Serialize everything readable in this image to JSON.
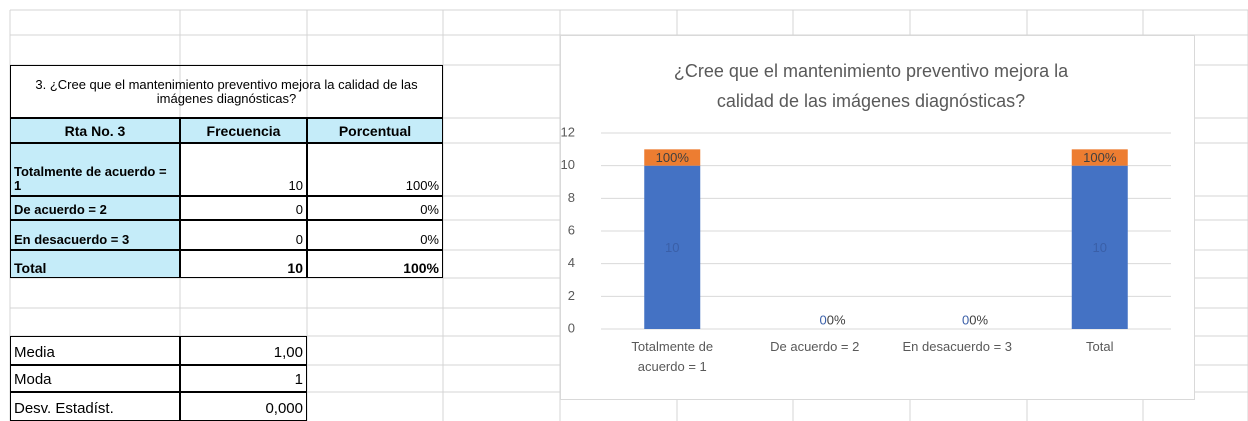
{
  "table": {
    "title": "3. ¿Cree que el mantenimiento preventivo mejora la calidad de las imágenes diagnósticas?",
    "header": [
      "Rta No. 3",
      "Frecuencia",
      "Porcentual"
    ],
    "rows": [
      [
        "Totalmente de acuerdo = 1",
        "10",
        "100%"
      ],
      [
        "De acuerdo = 2",
        "0",
        "0%"
      ],
      [
        "En desacuerdo = 3",
        "0",
        "0%"
      ],
      [
        "Total",
        "10",
        "100%"
      ]
    ]
  },
  "stats": [
    [
      "Media",
      "1,00"
    ],
    [
      "Moda",
      "1"
    ],
    [
      "Desv. Estadíst.",
      "0,000"
    ]
  ],
  "chart_data": {
    "type": "bar",
    "stacked": true,
    "title": "¿Cree que el mantenimiento preventivo mejora la calidad de las imágenes diagnósticas?",
    "categories": [
      "Totalmente de acuerdo = 1",
      "De acuerdo = 2",
      "En desacuerdo = 3",
      "Total"
    ],
    "series": [
      {
        "color": "#4472c4",
        "values": [
          10,
          0,
          0,
          10
        ]
      },
      {
        "color": "#ed7d31",
        "values": [
          1,
          0,
          0,
          1
        ],
        "value_labels": [
          "100%",
          "0%",
          "0%",
          "100%"
        ]
      }
    ],
    "ylim": [
      0,
      12
    ],
    "yticks": [
      0,
      2,
      4,
      6,
      8,
      10,
      12
    ],
    "grid": true
  }
}
